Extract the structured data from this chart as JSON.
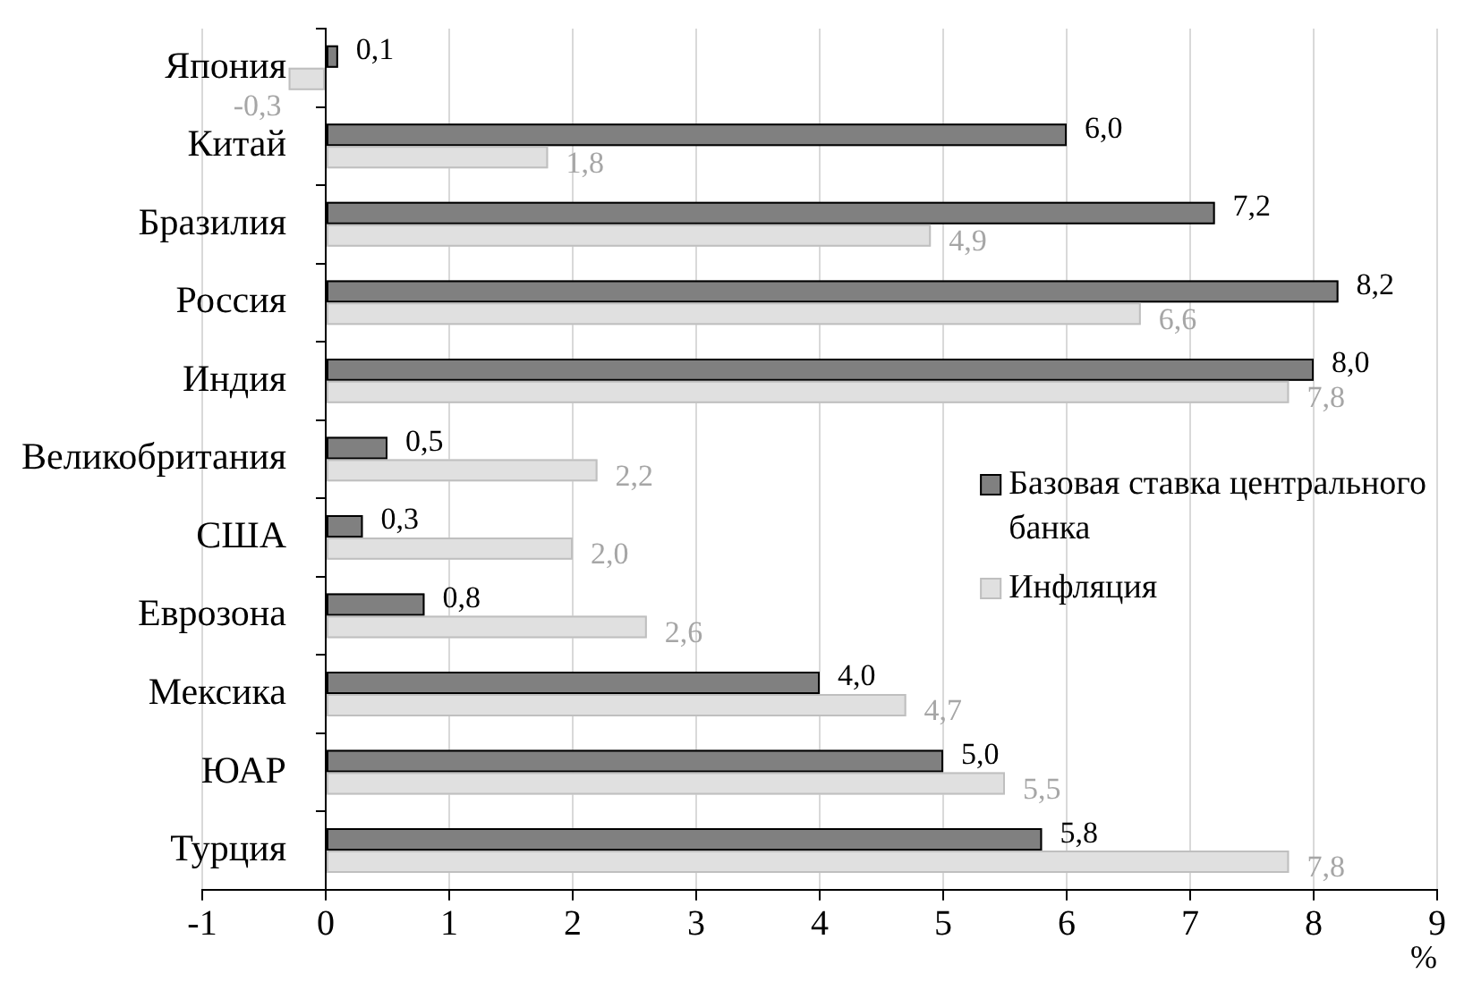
{
  "chart_data": {
    "type": "bar",
    "orientation": "horizontal",
    "categories": [
      "Япония",
      "Китай",
      "Бразилия",
      "Россия",
      "Индия",
      "Великобритания",
      "США",
      "Еврозона",
      "Мексика",
      "ЮАР",
      "Турция"
    ],
    "series": [
      {
        "name": "Базовая ставка центрального банка",
        "color": "#808080",
        "values": [
          0.1,
          6.0,
          7.2,
          8.2,
          8.0,
          0.5,
          0.3,
          0.8,
          4.0,
          5.0,
          5.8
        ],
        "value_labels": [
          "0,1",
          "6,0",
          "7,2",
          "8,2",
          "8,0",
          "0,5",
          "0,3",
          "0,8",
          "4,0",
          "5,0",
          "5,8"
        ]
      },
      {
        "name": "Инфляция",
        "color": "#e0e0e0",
        "values": [
          -0.3,
          1.8,
          4.9,
          6.6,
          7.8,
          2.2,
          2.0,
          2.6,
          4.7,
          5.5,
          7.8
        ],
        "value_labels": [
          "-0,3",
          "1,8",
          "4,9",
          "6,6",
          "7,8",
          "2,2",
          "2,0",
          "2,6",
          "4,7",
          "5,5",
          "7,8"
        ]
      }
    ],
    "xlim": [
      -1,
      9
    ],
    "xticks": [
      -1,
      0,
      1,
      2,
      3,
      4,
      5,
      6,
      7,
      8,
      9
    ],
    "xlabel": "%",
    "grid": "x",
    "legend": "right"
  }
}
